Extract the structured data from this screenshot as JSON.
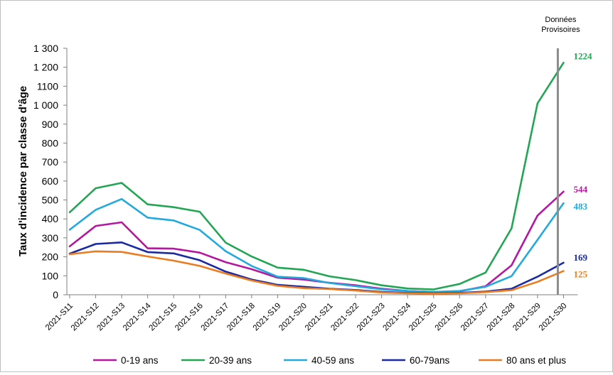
{
  "chart_data": {
    "type": "line",
    "ylabel": "Taux d'incidence par classe d'âge",
    "xlabel": "",
    "ylim": [
      0,
      1300
    ],
    "yticks": [
      {
        "value": 0,
        "label": "0"
      },
      {
        "value": 100,
        "label": "100"
      },
      {
        "value": 200,
        "label": "200"
      },
      {
        "value": 300,
        "label": "300"
      },
      {
        "value": 400,
        "label": "400"
      },
      {
        "value": 500,
        "label": "500"
      },
      {
        "value": 600,
        "label": "600"
      },
      {
        "value": 700,
        "label": "700"
      },
      {
        "value": 800,
        "label": "800"
      },
      {
        "value": 900,
        "label": "900"
      },
      {
        "value": 1000,
        "label": "1 000"
      },
      {
        "value": 1100,
        "label": "1100"
      },
      {
        "value": 1200,
        "label": "1 200"
      },
      {
        "value": 1300,
        "label": "1 300"
      }
    ],
    "categories": [
      "2021-S11",
      "2021-S12",
      "2021-S13",
      "2021-S14",
      "2021-S15",
      "2021-S16",
      "2021-S17",
      "2021-S18",
      "2021-S19",
      "2021-S20",
      "2021-S21",
      "2021-S22",
      "2021-S23",
      "2021-S24",
      "2021-S25",
      "2021-S26",
      "2021-S27",
      "2021-S28",
      "2021-S29",
      "2021-S30"
    ],
    "series": [
      {
        "name": "0-19 ans",
        "color": "#b5179e",
        "end_label": "544",
        "values": [
          255,
          363,
          382,
          245,
          243,
          222,
          172,
          135,
          90,
          80,
          63,
          50,
          32,
          20,
          15,
          18,
          45,
          155,
          418,
          544
        ]
      },
      {
        "name": "20-39 ans",
        "color": "#22a654",
        "end_label": "1224",
        "values": [
          435,
          562,
          590,
          477,
          462,
          438,
          275,
          202,
          143,
          132,
          97,
          77,
          50,
          33,
          28,
          57,
          117,
          350,
          1010,
          1224
        ]
      },
      {
        "name": "40-59 ans",
        "color": "#22aadd",
        "end_label": "483",
        "values": [
          343,
          448,
          505,
          407,
          392,
          342,
          230,
          152,
          95,
          88,
          62,
          45,
          28,
          20,
          15,
          20,
          42,
          98,
          290,
          483
        ]
      },
      {
        "name": "60-79ans",
        "color": "#1a2aa0",
        "end_label": "169",
        "values": [
          217,
          268,
          276,
          225,
          218,
          182,
          122,
          80,
          52,
          42,
          32,
          25,
          15,
          10,
          8,
          10,
          17,
          32,
          95,
          169
        ]
      },
      {
        "name": "80 ans et plus",
        "color": "#ec7c22",
        "end_label": "125",
        "values": [
          214,
          229,
          226,
          202,
          180,
          152,
          112,
          75,
          47,
          35,
          30,
          22,
          12,
          8,
          6,
          8,
          14,
          24,
          68,
          125
        ]
      }
    ],
    "annotation": {
      "lines": [
        "Données",
        "Provisoires"
      ],
      "after_category": "2021-S29"
    },
    "grid": false,
    "legend": "bottom"
  }
}
